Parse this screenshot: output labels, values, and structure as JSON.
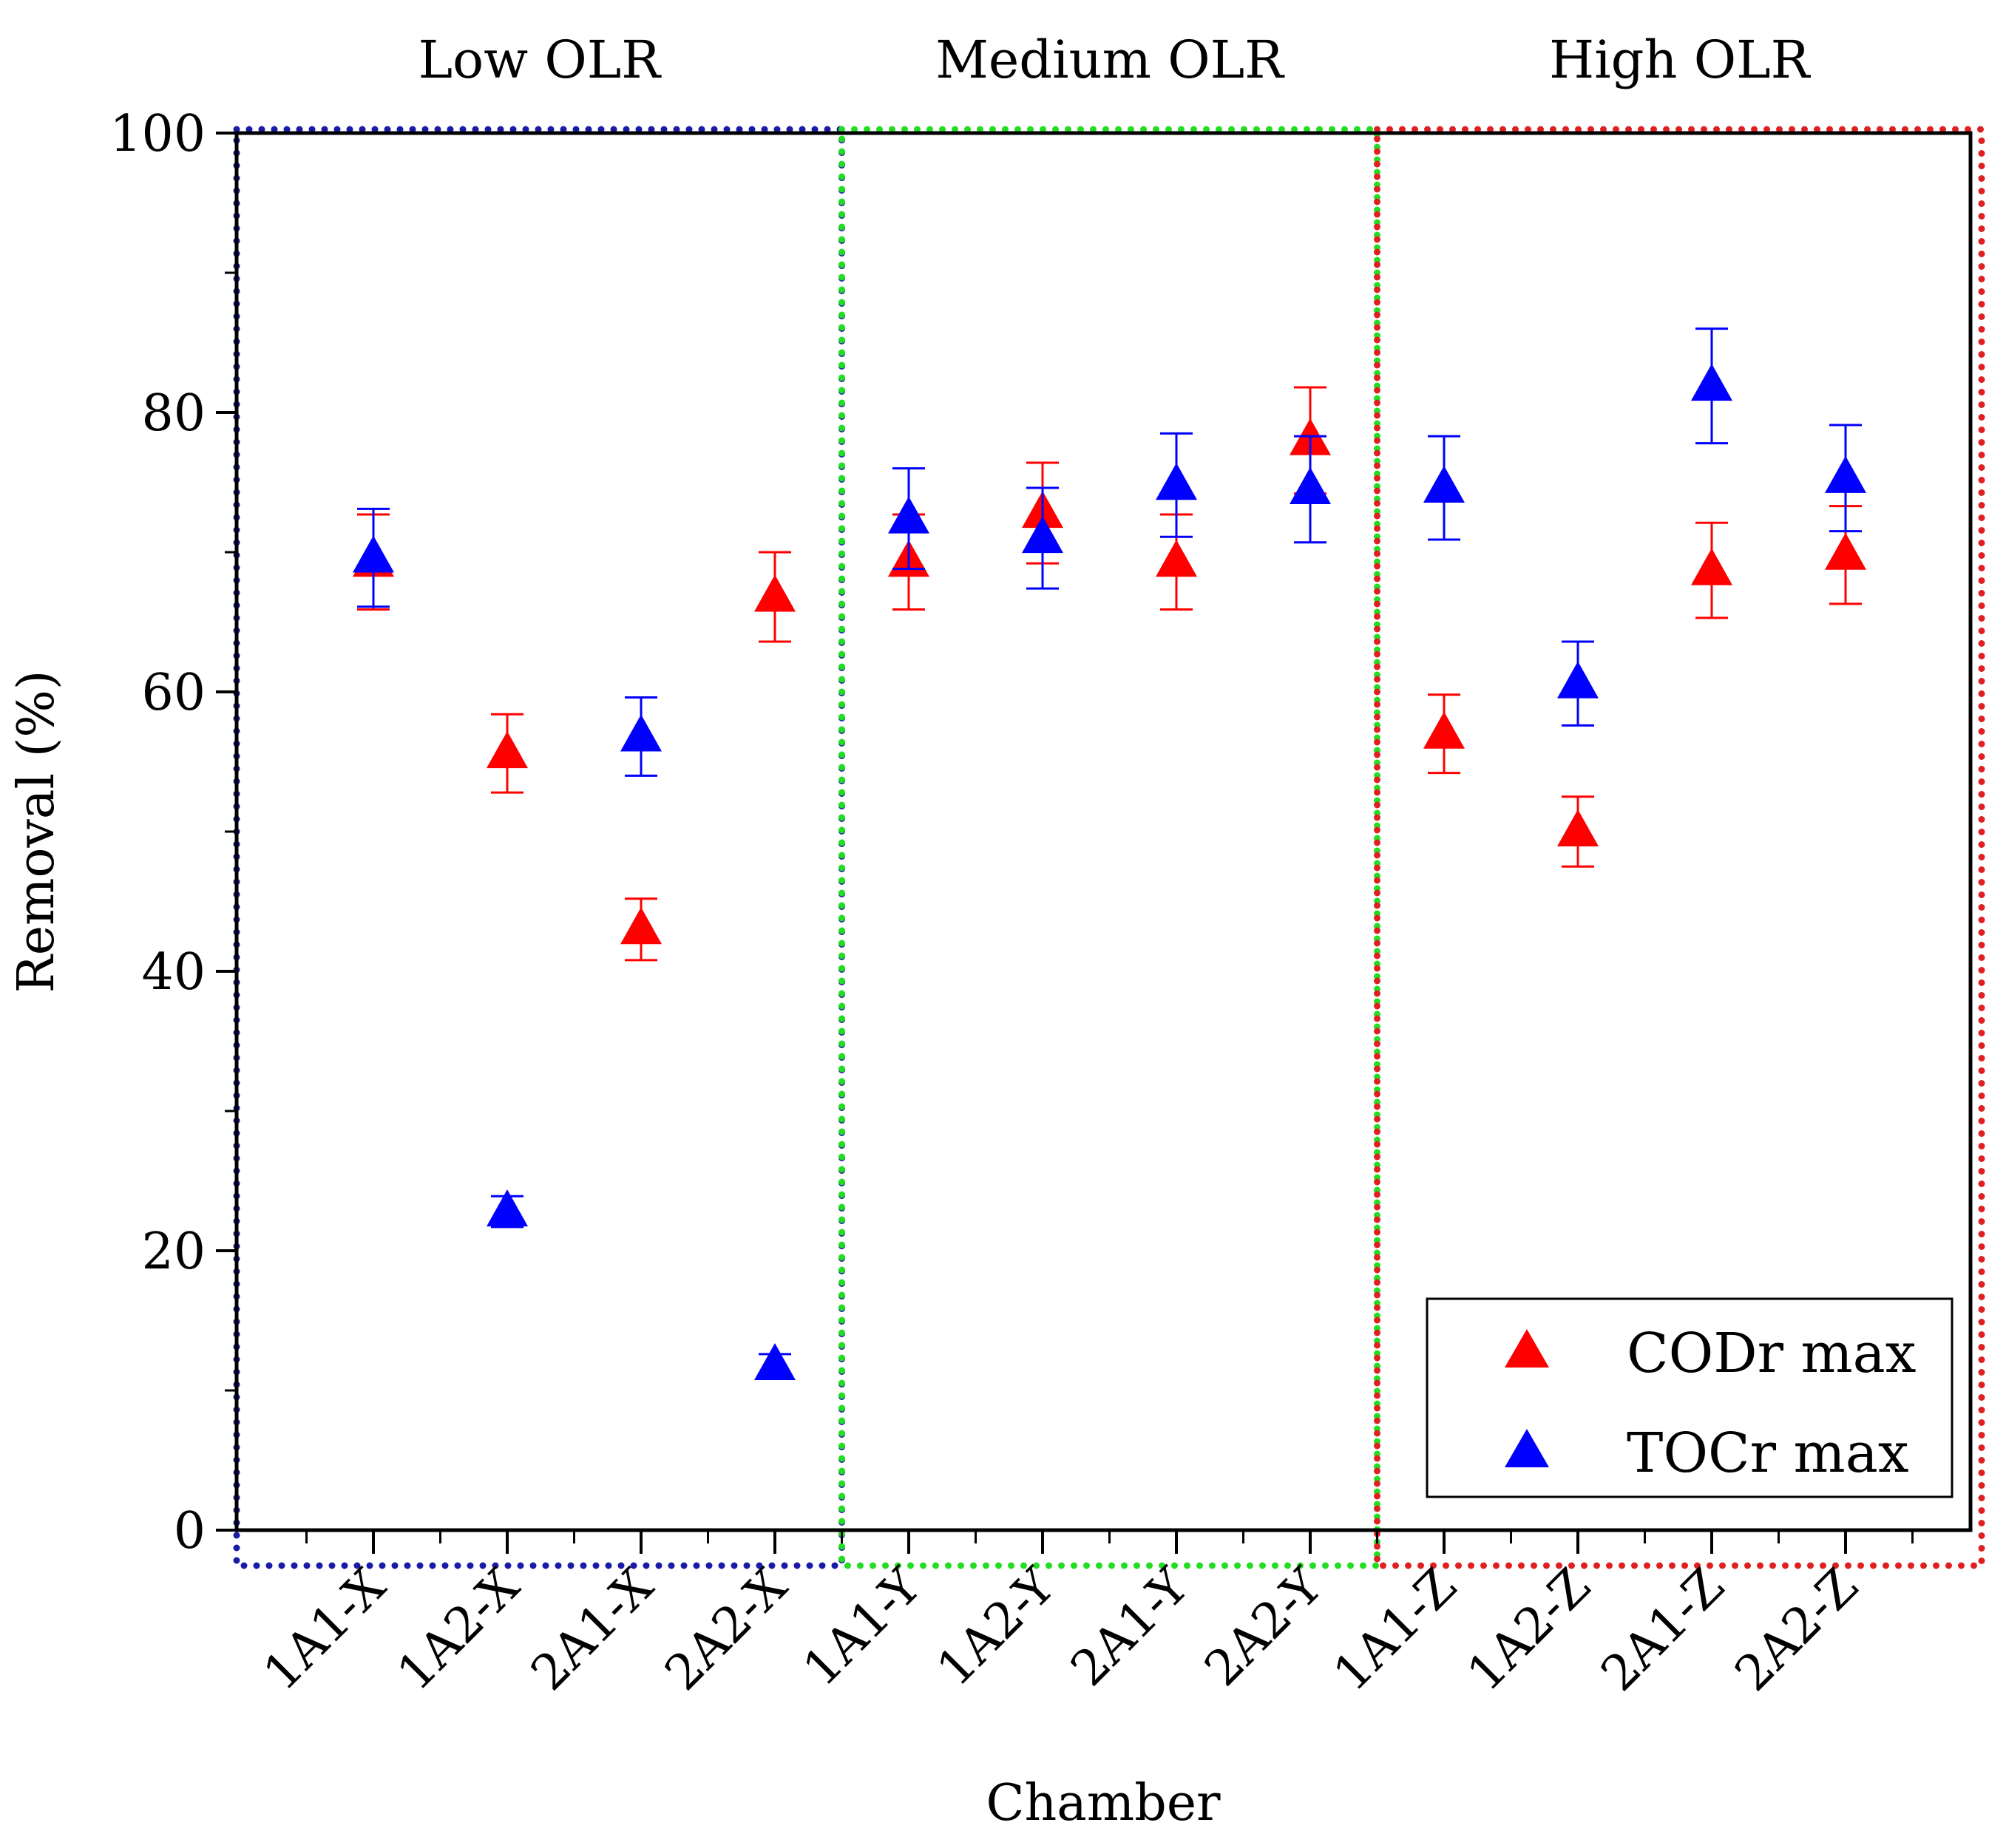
{
  "chart_data": {
    "type": "scatter",
    "xlabel": "Chamber",
    "ylabel": "Removal (%)",
    "ylim": [
      0,
      100
    ],
    "yticks": [
      0,
      20,
      40,
      60,
      80,
      100
    ],
    "categories": [
      "1A1-X",
      "1A2-X",
      "2A1-X",
      "2A2-X",
      "1A1-Y",
      "1A2-Y",
      "2A1-Y",
      "2A2-Y",
      "1A1-Z",
      "1A2-Z",
      "2A1-Z",
      "2A2-Z"
    ],
    "groups": [
      {
        "label": "Low OLR",
        "color": "#1a1aa8",
        "from": 0,
        "to": 3
      },
      {
        "label": "Medium OLR",
        "color": "#22dd22",
        "from": 4,
        "to": 7
      },
      {
        "label": "High OLR",
        "color": "#e02020",
        "from": 8,
        "to": 11
      }
    ],
    "series": [
      {
        "name": "CODr max",
        "color": "#ff0000",
        "values": [
          69.3,
          55.6,
          43.0,
          66.8,
          69.3,
          72.8,
          69.3,
          78.0,
          57.0,
          50.0,
          68.7,
          69.8
        ],
        "errors": [
          3.4,
          2.8,
          2.2,
          3.2,
          3.4,
          3.6,
          3.4,
          3.8,
          2.8,
          2.5,
          3.4,
          3.5
        ]
      },
      {
        "name": "TOCr max",
        "color": "#0000ff",
        "values": [
          69.6,
          22.8,
          56.8,
          11.8,
          72.4,
          71.0,
          74.8,
          74.5,
          74.6,
          60.6,
          81.9,
          75.3
        ],
        "errors": [
          3.5,
          1.1,
          2.8,
          0.8,
          3.6,
          3.6,
          3.7,
          3.8,
          3.7,
          3.0,
          4.1,
          3.8
        ]
      }
    ]
  }
}
